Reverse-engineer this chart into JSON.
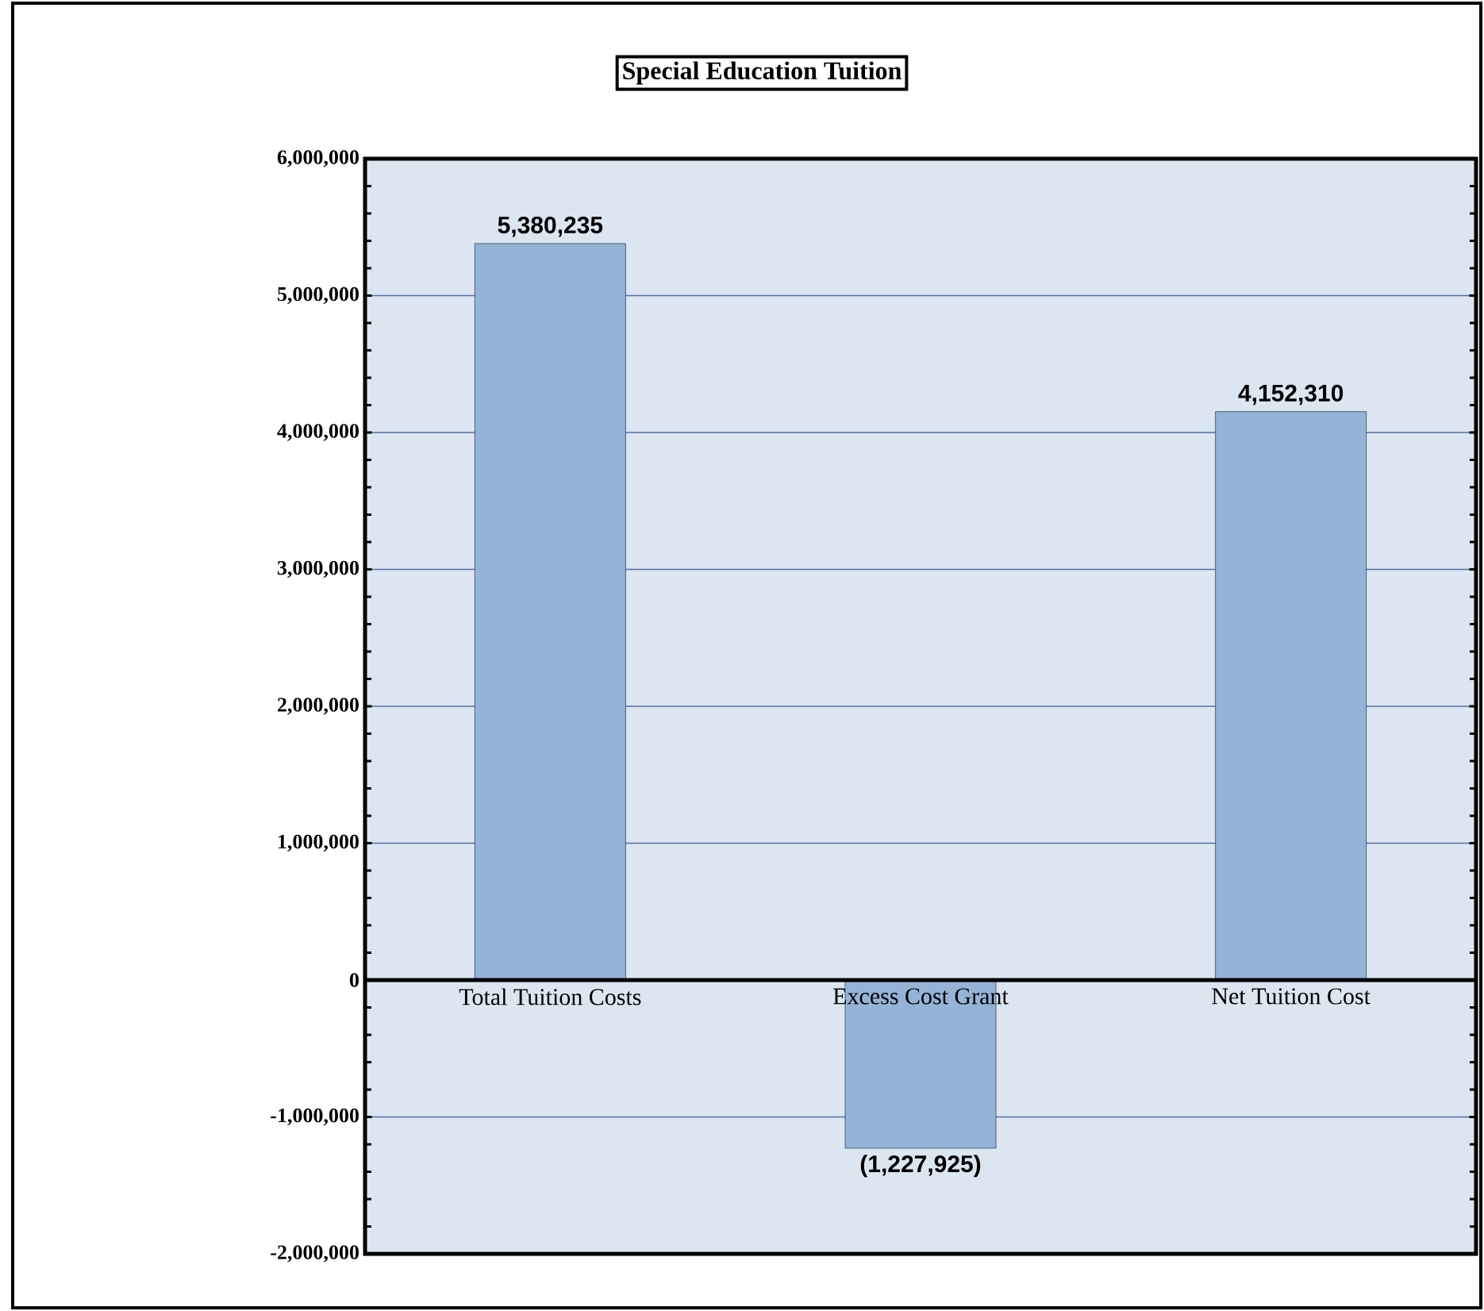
{
  "chart_data": {
    "type": "bar",
    "title": "Special Education Tuition",
    "categories": [
      "Total Tuition Costs",
      "Excess Cost Grant",
      "Net Tuition Cost"
    ],
    "values": [
      5380235,
      -1227925,
      4152310
    ],
    "value_labels": [
      "5,380,235",
      "(1,227,925)",
      "4,152,310"
    ],
    "color": "#95b3d7",
    "ylim": [
      -2000000,
      6000000
    ],
    "yticks": [
      {
        "value": -2000000,
        "label": "-2,000,000"
      },
      {
        "value": -1000000,
        "label": "-1,000,000"
      },
      {
        "value": 0,
        "label": "0"
      },
      {
        "value": 1000000,
        "label": "1,000,000"
      },
      {
        "value": 2000000,
        "label": "2,000,000"
      },
      {
        "value": 3000000,
        "label": "3,000,000"
      },
      {
        "value": 4000000,
        "label": "4,000,000"
      },
      {
        "value": 5000000,
        "label": "5,000,000"
      },
      {
        "value": 6000000,
        "label": "6,000,000"
      }
    ],
    "grid": "y"
  }
}
